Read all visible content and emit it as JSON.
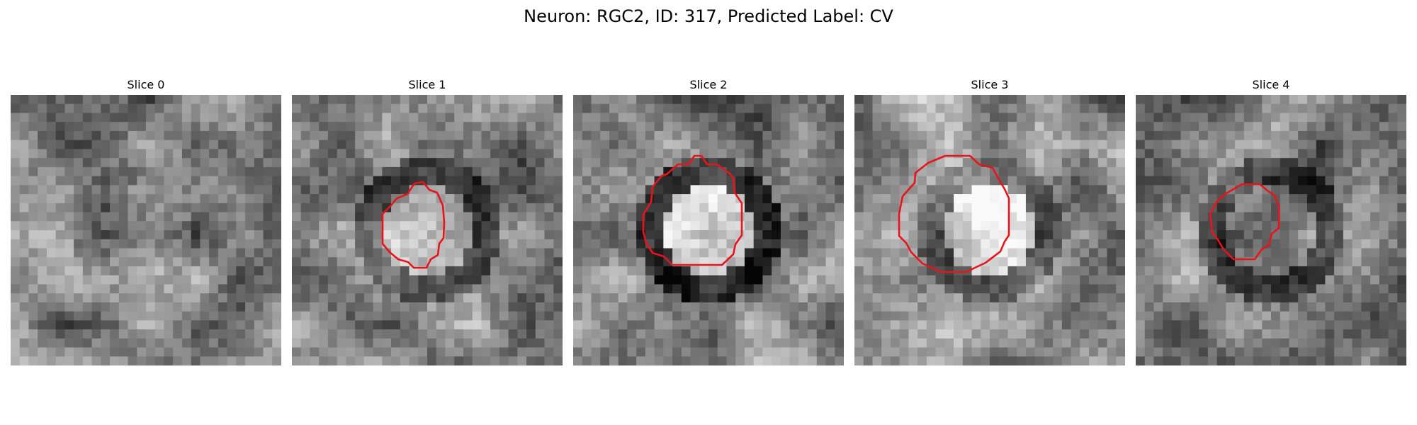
{
  "figure": {
    "title": "Neuron: RGC2, ID: 317, Predicted Label: CV"
  },
  "colors": {
    "contour": "#e8141c",
    "background": "#ffffff"
  },
  "panels": [
    {
      "title": "Slice 0",
      "has_contour": false,
      "seed": 11,
      "center_brightness": 0.05,
      "ring_darkness": 0.05
    },
    {
      "title": "Slice 1",
      "has_contour": true,
      "seed": 23,
      "center_brightness": 0.1,
      "ring_darkness": 0.25
    },
    {
      "title": "Slice 2",
      "has_contour": true,
      "seed": 37,
      "center_brightness": 0.25,
      "ring_darkness": 0.35
    },
    {
      "title": "Slice 3",
      "has_contour": true,
      "seed": 41,
      "center_brightness": 0.3,
      "ring_darkness": 0.2
    },
    {
      "title": "Slice 4",
      "has_contour": true,
      "seed": 53,
      "center_brightness": 0.05,
      "ring_darkness": 0.25
    }
  ]
}
